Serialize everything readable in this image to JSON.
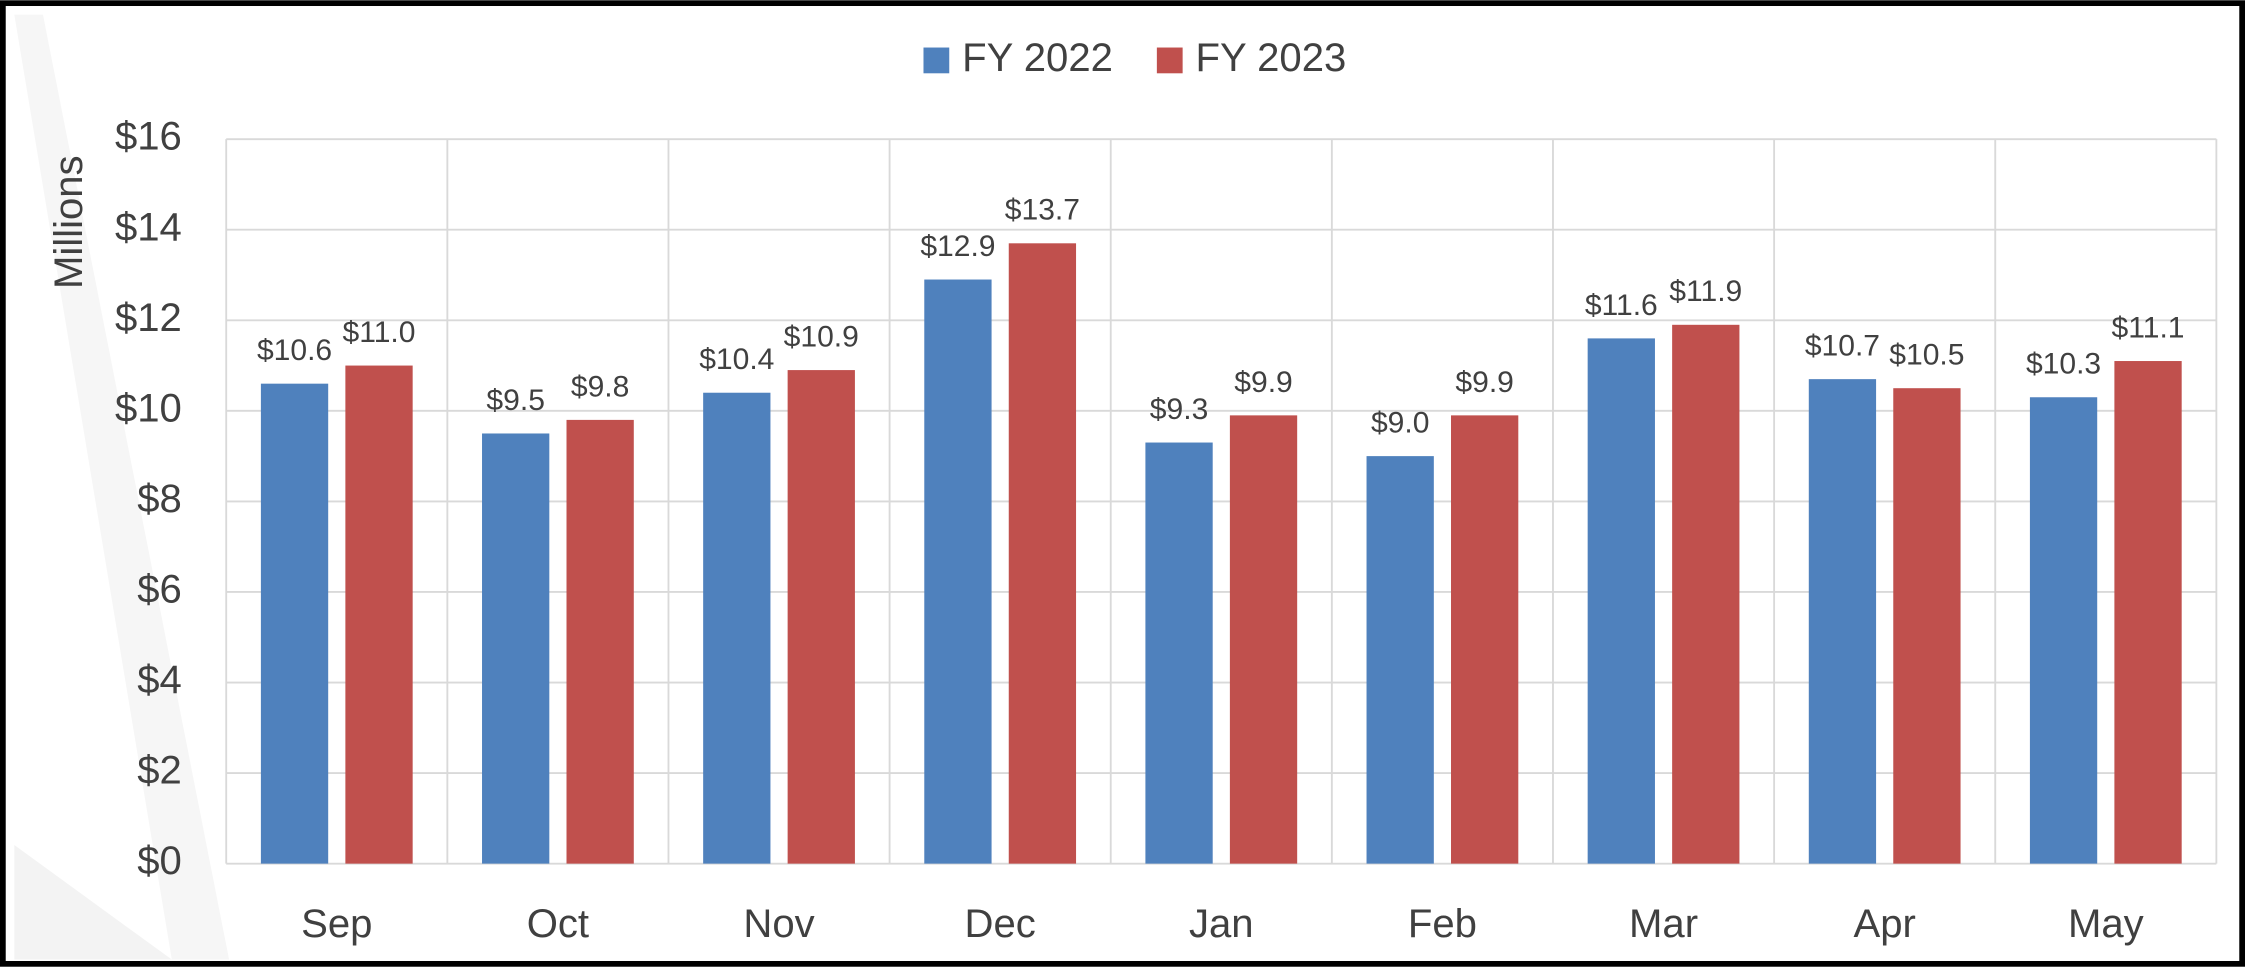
{
  "chart_data": {
    "type": "bar",
    "y_label": "Millions",
    "categories": [
      "Sep",
      "Oct",
      "Nov",
      "Dec",
      "Jan",
      "Feb",
      "Mar",
      "Apr",
      "May"
    ],
    "series": [
      {
        "name": "FY 2022",
        "color": "#4f81bd",
        "values": [
          10.6,
          9.5,
          10.4,
          12.9,
          9.3,
          9.0,
          11.6,
          10.7,
          10.3
        ],
        "value_labels": [
          "$10.6",
          "$9.5",
          "$10.4",
          "$12.9",
          "$9.3",
          "$9.0",
          "$11.6",
          "$10.7",
          "$10.3"
        ]
      },
      {
        "name": "FY 2023",
        "color": "#c0504d",
        "values": [
          11.0,
          9.8,
          10.9,
          13.7,
          9.9,
          9.9,
          11.9,
          10.5,
          11.1
        ],
        "value_labels": [
          "$11.0",
          "$9.8",
          "$10.9",
          "$13.7",
          "$9.9",
          "$9.9",
          "$11.9",
          "$10.5",
          "$11.1"
        ]
      }
    ],
    "ylim": [
      0,
      16
    ],
    "yticks": [
      {
        "value": 0,
        "label": "$0"
      },
      {
        "value": 2,
        "label": "$2"
      },
      {
        "value": 4,
        "label": "$4"
      },
      {
        "value": 6,
        "label": "$6"
      },
      {
        "value": 8,
        "label": "$8"
      },
      {
        "value": 10,
        "label": "$10"
      },
      {
        "value": 12,
        "label": "$12"
      },
      {
        "value": 14,
        "label": "$14"
      },
      {
        "value": 16,
        "label": "$16"
      }
    ],
    "grid": true,
    "legend": "top"
  }
}
